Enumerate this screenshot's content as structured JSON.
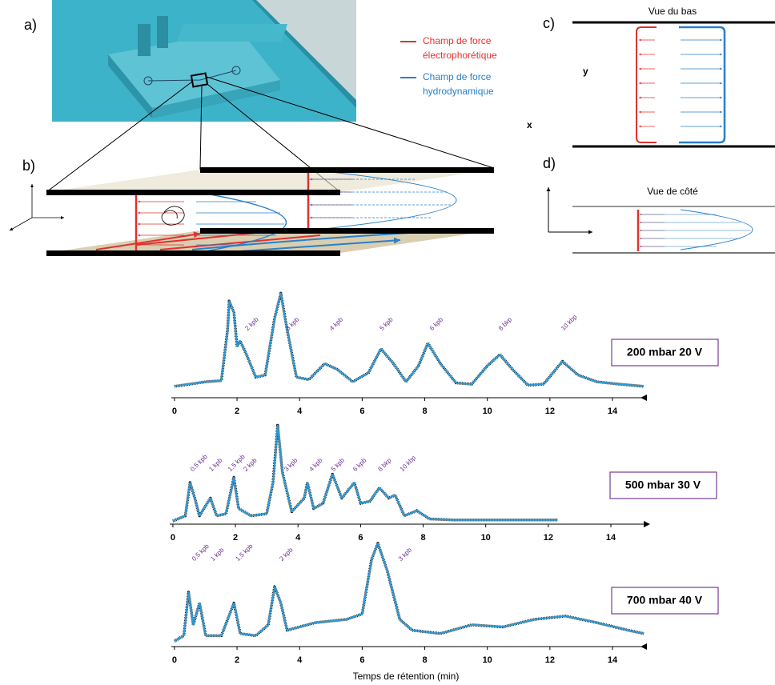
{
  "figure": {
    "panels": [
      "a)",
      "b)",
      "c)",
      "d)"
    ],
    "legend": [
      {
        "lines": [
          "Champ de force",
          "électrophorétique"
        ],
        "color": "#e0312f"
      },
      {
        "lines": [
          "Champ de force",
          "hydrodynamique"
        ],
        "color": "#2a7fc8"
      }
    ],
    "view_bottom": "Vue du bas",
    "view_side": "Vue de côté",
    "axis_y": "y",
    "axis_x": "x"
  },
  "chart_data": [
    {
      "type": "line",
      "label": "200 mbar 20 V",
      "color": "#2a9ad6",
      "x": [
        0,
        0.5,
        1,
        1.5,
        1.7,
        1.75,
        1.9,
        2.0,
        2.1,
        2.3,
        2.6,
        2.9,
        3.2,
        3.4,
        3.6,
        3.9,
        4.3,
        4.8,
        5.2,
        5.7,
        6.2,
        6.6,
        7.0,
        7.4,
        7.8,
        8.1,
        8.5,
        9.0,
        9.5,
        10.0,
        10.4,
        10.8,
        11.3,
        11.8,
        12.4,
        12.9,
        13.5,
        14.2,
        15
      ],
      "values": [
        10,
        12,
        14,
        15,
        60,
        85,
        75,
        45,
        50,
        38,
        18,
        20,
        70,
        92,
        60,
        18,
        16,
        30,
        25,
        14,
        22,
        43,
        30,
        14,
        28,
        48,
        30,
        13,
        12,
        28,
        38,
        25,
        11,
        12,
        32,
        20,
        14,
        12,
        10
      ],
      "xlim": [
        -0.1,
        15.1
      ],
      "ylim": [
        0,
        100
      ],
      "xticks": [
        0,
        2,
        4,
        6,
        8,
        10,
        12,
        14
      ],
      "annotations": [
        {
          "text": "2 kpb",
          "x": 2.3
        },
        {
          "text": "3 kpb",
          "x": 3.6
        },
        {
          "text": "4 kpb",
          "x": 5.0
        },
        {
          "text": "5 kpb",
          "x": 6.6
        },
        {
          "text": "6 kpb",
          "x": 8.2
        },
        {
          "text": "8 bkp",
          "x": 10.4
        },
        {
          "text": "10 kbp",
          "x": 12.4
        }
      ]
    },
    {
      "type": "line",
      "label": "500 mbar 30 V",
      "color": "#2a9ad6",
      "x": [
        0,
        0.4,
        0.55,
        0.7,
        0.85,
        1.2,
        1.4,
        1.7,
        1.95,
        2.1,
        2.5,
        3.0,
        3.2,
        3.35,
        3.5,
        3.8,
        4.2,
        4.3,
        4.5,
        4.8,
        5.1,
        5.4,
        5.8,
        6.0,
        6.3,
        6.6,
        6.9,
        7.1,
        7.4,
        7.8,
        8.2,
        9,
        10,
        11,
        12.3
      ],
      "values": [
        3,
        8,
        40,
        25,
        8,
        25,
        8,
        10,
        45,
        15,
        8,
        10,
        40,
        95,
        50,
        12,
        25,
        40,
        15,
        20,
        48,
        25,
        40,
        20,
        22,
        35,
        25,
        28,
        8,
        13,
        5,
        4,
        4,
        4,
        4
      ],
      "xlim": [
        -0.1,
        15.1
      ],
      "ylim": [
        0,
        100
      ],
      "xticks": [
        0,
        2,
        4,
        6,
        8,
        10,
        12,
        14
      ],
      "annotations": [
        {
          "text": "0.5 kpb",
          "x": 0.6
        },
        {
          "text": "1 kpb",
          "x": 1.2
        },
        {
          "text": "1.5 kpb",
          "x": 1.8
        },
        {
          "text": "2 kpb",
          "x": 2.3
        },
        {
          "text": "3 kpb",
          "x": 3.6
        },
        {
          "text": "4 kpb",
          "x": 4.4
        },
        {
          "text": "5 kpb",
          "x": 5.1
        },
        {
          "text": "6 kpb",
          "x": 5.8
        },
        {
          "text": "8 bkp",
          "x": 6.6
        },
        {
          "text": "10 kbp",
          "x": 7.3
        }
      ]
    },
    {
      "type": "line",
      "label": "700 mbar 40 V",
      "color": "#2a9ad6",
      "x_label": "Temps de rétention (min)",
      "x": [
        0,
        0.3,
        0.45,
        0.6,
        0.8,
        1.0,
        1.5,
        1.9,
        2.1,
        2.6,
        3.0,
        3.2,
        3.4,
        3.6,
        4.5,
        5.5,
        6.0,
        6.3,
        6.5,
        6.8,
        7.2,
        7.6,
        8.5,
        9.5,
        10.5,
        11.5,
        12.5,
        13.5,
        14.5,
        15
      ],
      "values": [
        5,
        10,
        50,
        20,
        40,
        10,
        10,
        40,
        12,
        10,
        20,
        55,
        40,
        15,
        22,
        25,
        30,
        80,
        95,
        70,
        25,
        15,
        12,
        20,
        18,
        25,
        28,
        22,
        15,
        12
      ],
      "xlim": [
        -0.1,
        15.1
      ],
      "ylim": [
        0,
        100
      ],
      "xticks": [
        0,
        2,
        4,
        6,
        8,
        10,
        12,
        14
      ],
      "annotations": [
        {
          "text": "0.5 kpb",
          "x": 0.6
        },
        {
          "text": "1 kpb",
          "x": 1.2
        },
        {
          "text": "1.5 kpb",
          "x": 2.0
        },
        {
          "text": "2 kpb",
          "x": 3.4
        },
        {
          "text": "3 kpb",
          "x": 7.2
        }
      ]
    }
  ]
}
